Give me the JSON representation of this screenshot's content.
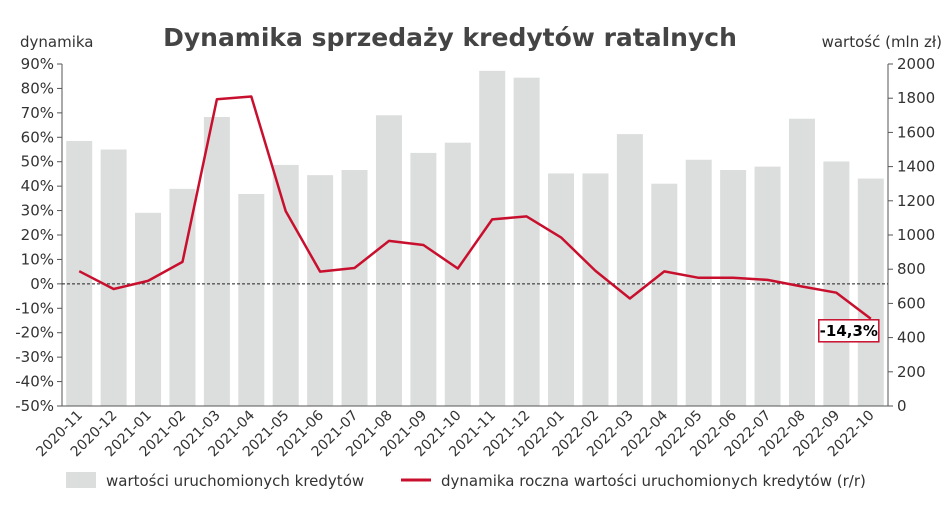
{
  "chart_data": {
    "type": "bar",
    "title": "Dynamika sprzedaży kredytów ratalnych",
    "y_left_label": "dynamika",
    "y_right_label": "wartość (mln zł)",
    "categories": [
      "2020-11",
      "2020-12",
      "2021-01",
      "2021-02",
      "2021-03",
      "2021-04",
      "2021-05",
      "2021-06",
      "2021-07",
      "2021-08",
      "2021-09",
      "2021-10",
      "2021-11",
      "2021-12",
      "2022-01",
      "2022-02",
      "2022-03",
      "2022-04",
      "2022-05",
      "2022-06",
      "2022-07",
      "2022-08",
      "2022-09",
      "2022-10"
    ],
    "y_left_ticks": [
      "-50%",
      "-40%",
      "-30%",
      "-20%",
      "-10%",
      "0%",
      "10%",
      "20%",
      "30%",
      "40%",
      "50%",
      "60%",
      "70%",
      "80%",
      "90%"
    ],
    "y_right_ticks": [
      "0",
      "200",
      "400",
      "600",
      "800",
      "1000",
      "1200",
      "1400",
      "1600",
      "1800",
      "2000"
    ],
    "ylim_left": [
      -50,
      90
    ],
    "ylim_right": [
      0,
      2000
    ],
    "series": [
      {
        "name": "wartości uruchomionych kredytów",
        "axis": "right",
        "kind": "bar",
        "color": "#dcdedd",
        "values": [
          1550,
          1500,
          1130,
          1270,
          1690,
          1240,
          1410,
          1350,
          1380,
          1700,
          1480,
          1540,
          1960,
          1920,
          1360,
          1360,
          1590,
          1300,
          1440,
          1380,
          1400,
          1680,
          1430,
          1330
        ]
      },
      {
        "name": "dynamika roczna wartości uruchomionych kredytów (r/r)",
        "axis": "left",
        "kind": "line",
        "color": "#c8102e",
        "values": [
          5.2,
          -2.1,
          1.2,
          9.0,
          75.6,
          76.7,
          29.8,
          5.0,
          6.5,
          17.6,
          15.9,
          6.3,
          26.4,
          27.6,
          19.0,
          5.3,
          -6.0,
          5.1,
          2.5,
          2.5,
          1.6,
          -1.1,
          -3.6,
          -14.3
        ]
      }
    ],
    "zero_line": "dashed",
    "annotation": {
      "text": "-14,3%",
      "category": "2022-10"
    },
    "legend_position": "bottom"
  }
}
